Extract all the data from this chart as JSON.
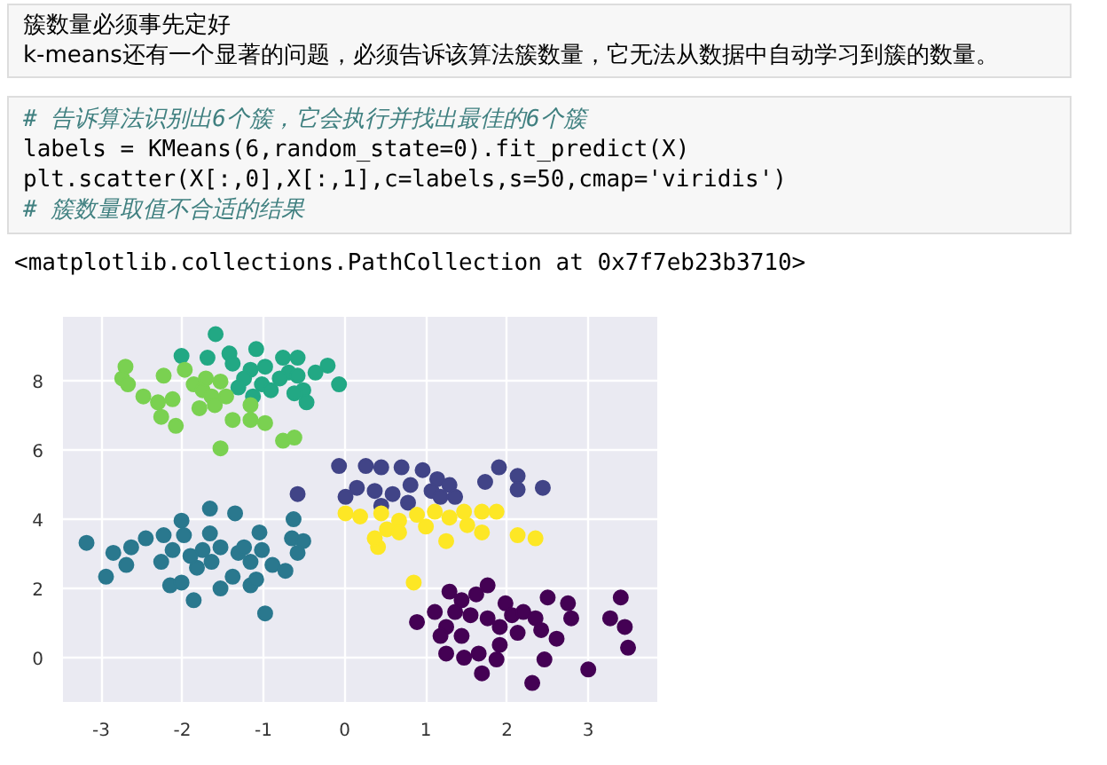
{
  "chart_data": {
    "type": "scatter",
    "marker": "circle",
    "grid": true,
    "annotations": [
      "簇数量必须事先定好",
      "k-means还有一个显著的问题，必须告诉该算法簇数量，它无法从数据中自动学习到簇的数量。",
      "# 告诉算法识别出6个簇，它会执行并找出最佳的6个簇",
      "labels = KMeans(6,random_state=0).fit_predict(X)",
      "plt.scatter(X[:,0],X[:,1],c=labels,s=50,cmap='viridis')",
      "# 簇数量取值不合适的结果",
      "<matplotlib.collections.PathCollection at 0x7f7eb23b3710>"
    ],
    "xlim": [
      -3.47,
      3.85
    ],
    "ylim": [
      -1.28,
      9.85
    ],
    "xticks": [
      -3,
      -2,
      -1,
      0,
      1,
      2,
      3
    ],
    "yticks": [
      0,
      2,
      4,
      6,
      8
    ],
    "series": [
      {
        "color": "#440154",
        "x": [
          0.89,
          1.11,
          1.29,
          1.44,
          1.62,
          1.76,
          1.36,
          1.25,
          1.55,
          1.76,
          1.98,
          2.06,
          1.91,
          2.2,
          2.35,
          2.5,
          2.75,
          2.79,
          2.61,
          2.42,
          2.13,
          1.91,
          1.87,
          1.65,
          1.47,
          1.25,
          1.69,
          2.31,
          2.46,
          3.0,
          3.27,
          3.4,
          3.45,
          3.49,
          1.44,
          1.18
        ],
        "values": [
          1.03,
          1.32,
          1.91,
          1.66,
          1.83,
          2.09,
          1.32,
          0.89,
          1.23,
          1.14,
          1.57,
          1.23,
          0.89,
          1.32,
          1.14,
          1.74,
          1.57,
          1.14,
          0.55,
          0.8,
          0.72,
          0.37,
          -0.05,
          0.12,
          0.0,
          0.12,
          -0.45,
          -0.73,
          -0.05,
          -0.34,
          1.14,
          1.74,
          0.89,
          0.29,
          0.63,
          0.63
        ]
      },
      {
        "color": "#414487",
        "x": [
          -0.07,
          0.26,
          0.45,
          0.7,
          0.96,
          1.14,
          1.07,
          1.29,
          1.36,
          0.81,
          0.59,
          0.37,
          0.15,
          0.01,
          0.45,
          0.78,
          1.18,
          1.73,
          1.9,
          2.13,
          2.13,
          2.44,
          -0.58
        ],
        "values": [
          5.54,
          5.54,
          5.5,
          5.5,
          5.42,
          5.16,
          4.82,
          4.99,
          4.65,
          4.99,
          4.73,
          4.82,
          4.91,
          4.65,
          4.39,
          4.48,
          4.65,
          5.08,
          5.5,
          5.25,
          4.86,
          4.91,
          4.73
        ]
      },
      {
        "color": "#2a788e",
        "x": [
          -3.18,
          -2.94,
          -2.85,
          -2.69,
          -2.63,
          -2.45,
          -2.26,
          -2.23,
          -2.01,
          -1.98,
          -1.66,
          -1.35,
          -1.66,
          -2.12,
          -2.15,
          -2.01,
          -1.86,
          -1.82,
          -1.75,
          -1.64,
          -1.53,
          -1.38,
          -1.31,
          -1.16,
          -1.16,
          -1.09,
          -1.05,
          -0.98,
          -1.02,
          -0.89,
          -0.73,
          -0.65,
          -0.63,
          -0.51,
          -0.58,
          -1.9,
          -1.53,
          -1.24
        ],
        "values": [
          3.32,
          2.34,
          3.03,
          2.68,
          3.19,
          3.45,
          2.77,
          3.54,
          3.96,
          3.54,
          4.31,
          4.17,
          3.59,
          3.11,
          2.09,
          2.17,
          1.66,
          2.6,
          3.11,
          2.77,
          2.0,
          2.34,
          3.03,
          2.77,
          2.09,
          2.26,
          3.62,
          1.28,
          3.11,
          2.68,
          2.51,
          3.45,
          4.0,
          3.37,
          3.03,
          2.94,
          3.19,
          3.19
        ]
      },
      {
        "color": "#22a884",
        "x": [
          -1.59,
          -2.01,
          -1.69,
          -1.42,
          -1.38,
          -1.09,
          -1.16,
          -1.24,
          -0.98,
          -1.02,
          -0.76,
          -0.58,
          -0.69,
          -0.58,
          -0.51,
          -0.36,
          -0.21,
          -0.07,
          -0.47,
          -0.91,
          -0.8,
          -1.31,
          -1.13,
          -0.62
        ],
        "values": [
          9.35,
          8.72,
          8.67,
          8.79,
          8.5,
          8.92,
          8.32,
          8.07,
          8.41,
          7.9,
          8.67,
          8.67,
          8.24,
          8.15,
          7.73,
          8.24,
          8.44,
          7.9,
          7.38,
          7.73,
          8.07,
          7.81,
          7.55,
          7.64
        ]
      },
      {
        "color": "#7ad151",
        "x": [
          -2.7,
          -2.74,
          -2.67,
          -2.23,
          -2.48,
          -2.3,
          -2.26,
          -2.08,
          -2.12,
          -1.97,
          -1.86,
          -1.75,
          -1.64,
          -1.79,
          -1.6,
          -1.46,
          -1.38,
          -1.16,
          -1.16,
          -0.98,
          -0.76,
          -0.62,
          -1.53,
          -1.71,
          -1.53
        ],
        "values": [
          8.41,
          8.07,
          7.9,
          8.15,
          7.55,
          7.38,
          6.96,
          6.7,
          7.47,
          8.32,
          7.9,
          7.73,
          7.55,
          7.21,
          7.3,
          7.55,
          6.87,
          7.3,
          6.87,
          6.78,
          6.27,
          6.36,
          6.05,
          8.07,
          7.98
        ]
      },
      {
        "color": "#fde725",
        "x": [
          0.01,
          0.19,
          0.45,
          0.67,
          0.52,
          0.89,
          1.11,
          1.29,
          1.47,
          1.69,
          1.87,
          1.51,
          1.69,
          2.13,
          2.35,
          0.41,
          0.37,
          0.67,
          1.25,
          0.85,
          1.0
        ],
        "values": [
          4.17,
          4.08,
          4.17,
          3.96,
          3.71,
          4.13,
          4.22,
          4.05,
          4.22,
          4.22,
          4.22,
          3.83,
          3.62,
          3.54,
          3.45,
          3.2,
          3.45,
          3.62,
          3.37,
          2.17,
          3.79
        ]
      }
    ]
  }
}
